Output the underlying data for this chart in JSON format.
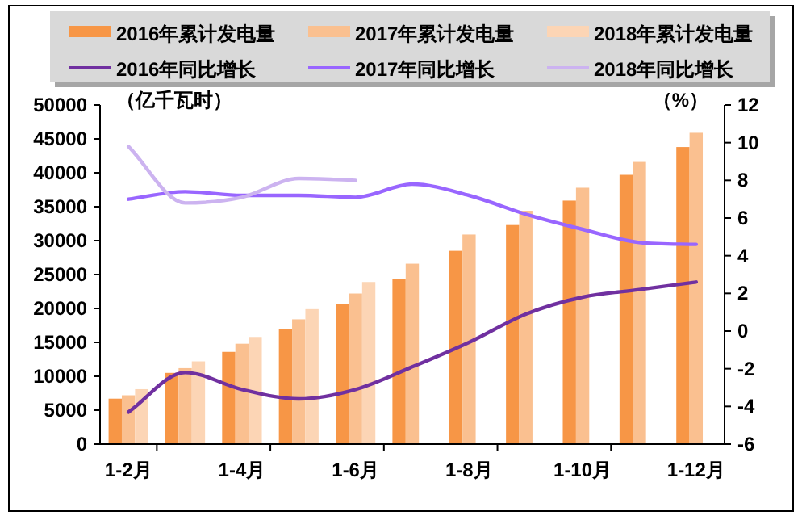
{
  "chart_data": {
    "type": "bar",
    "ylabel": "（亿千瓦时）",
    "y2label": "（%）",
    "categories": [
      "1-2月",
      null,
      "1-4月",
      null,
      "1-6月",
      null,
      "1-8月",
      null,
      "1-10月",
      null,
      "1-12月"
    ],
    "series": [
      {
        "name": "2016年累计发电量",
        "color": "#f79646",
        "values": [
          6700,
          10500,
          13600,
          17000,
          20600,
          24400,
          28500,
          32300,
          35900,
          39700,
          43800
        ]
      },
      {
        "name": "2017年累计发电量",
        "color": "#fac090",
        "values": [
          7200,
          11200,
          14800,
          18400,
          22200,
          26600,
          30900,
          34400,
          37800,
          41600,
          45900
        ]
      },
      {
        "name": "2018年累计发电量",
        "color": "#fcd5b5",
        "values": [
          8100,
          12200,
          15800,
          19900,
          23900,
          null,
          null,
          null,
          null,
          null,
          null
        ]
      },
      {
        "name": "2016年同比增长",
        "type": "line",
        "axis": "y2",
        "color": "#7030a0",
        "values": [
          -4.3,
          -2.2,
          -3.1,
          -3.6,
          -3.1,
          -1.9,
          -0.6,
          0.9,
          1.8,
          2.2,
          2.6
        ]
      },
      {
        "name": "2017年同比增长",
        "type": "line",
        "axis": "y2",
        "color": "#9966ff",
        "values": [
          7.0,
          7.4,
          7.2,
          7.2,
          7.1,
          7.8,
          7.2,
          6.2,
          5.4,
          4.7,
          4.6
        ]
      },
      {
        "name": "2018年同比增长",
        "type": "line",
        "axis": "y2",
        "color": "#ccb3f0",
        "values": [
          9.8,
          6.8,
          7.1,
          8.1,
          8.0,
          null,
          null,
          null,
          null,
          null,
          null
        ]
      }
    ],
    "ylim": [
      0,
      50000
    ],
    "yticks": [
      0,
      5000,
      10000,
      15000,
      20000,
      25000,
      30000,
      35000,
      40000,
      45000,
      50000
    ],
    "y2lim": [
      -6,
      12
    ],
    "y2ticks": [
      -6,
      -4,
      -2,
      0,
      2,
      4,
      6,
      8,
      10,
      12
    ],
    "legend": "top",
    "grid": false
  }
}
